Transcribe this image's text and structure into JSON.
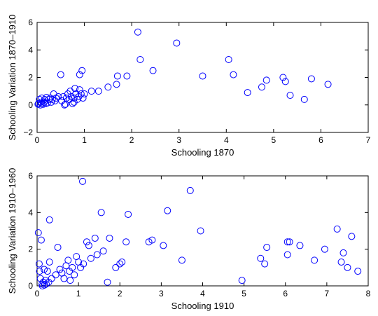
{
  "chart_data": [
    {
      "type": "scatter",
      "title": "",
      "xlabel": "Schooling 1870",
      "ylabel": "Schooling Variation 1870–1910",
      "xlim": [
        0,
        7
      ],
      "ylim": [
        -2,
        6
      ],
      "xticks": [
        "0",
        "1",
        "2",
        "3",
        "4",
        "5",
        "6",
        "7"
      ],
      "yticks": [
        "−2",
        "0",
        "2",
        "4",
        "6"
      ],
      "grid": false,
      "marker": "circle",
      "color": "#0000ff",
      "points": [
        [
          0.02,
          0.05
        ],
        [
          0.03,
          0.1
        ],
        [
          0.05,
          0.4
        ],
        [
          0.07,
          0.0
        ],
        [
          0.08,
          0.2
        ],
        [
          0.1,
          0.1
        ],
        [
          0.1,
          0.5
        ],
        [
          0.13,
          0.05
        ],
        [
          0.15,
          0.2
        ],
        [
          0.16,
          0.4
        ],
        [
          0.18,
          0.1
        ],
        [
          0.2,
          0.55
        ],
        [
          0.22,
          0.15
        ],
        [
          0.25,
          0.4
        ],
        [
          0.28,
          0.5
        ],
        [
          0.3,
          0.2
        ],
        [
          0.32,
          0.4
        ],
        [
          0.35,
          0.8
        ],
        [
          0.38,
          0.3
        ],
        [
          0.4,
          0.5
        ],
        [
          0.45,
          0.6
        ],
        [
          0.5,
          2.2
        ],
        [
          0.52,
          0.3
        ],
        [
          0.55,
          0.6
        ],
        [
          0.58,
          0.0
        ],
        [
          0.6,
          0.05
        ],
        [
          0.62,
          0.5
        ],
        [
          0.65,
          0.8
        ],
        [
          0.68,
          0.4
        ],
        [
          0.7,
          1.0
        ],
        [
          0.72,
          0.6
        ],
        [
          0.75,
          0.1
        ],
        [
          0.78,
          0.2
        ],
        [
          0.78,
          0.5
        ],
        [
          0.8,
          1.2
        ],
        [
          0.82,
          0.8
        ],
        [
          0.85,
          0.4
        ],
        [
          0.88,
          0.6
        ],
        [
          0.9,
          2.2
        ],
        [
          0.9,
          1.1
        ],
        [
          0.93,
          0.8
        ],
        [
          0.95,
          2.5
        ],
        [
          0.97,
          0.5
        ],
        [
          1.0,
          0.8
        ],
        [
          1.15,
          1.0
        ],
        [
          1.3,
          1.0
        ],
        [
          1.5,
          1.3
        ],
        [
          1.68,
          1.5
        ],
        [
          1.7,
          2.1
        ],
        [
          1.9,
          2.1
        ],
        [
          2.13,
          5.3
        ],
        [
          2.18,
          3.3
        ],
        [
          2.45,
          2.5
        ],
        [
          2.95,
          4.5
        ],
        [
          3.5,
          2.1
        ],
        [
          4.05,
          3.3
        ],
        [
          4.15,
          2.2
        ],
        [
          4.45,
          0.9
        ],
        [
          4.75,
          1.3
        ],
        [
          4.85,
          1.8
        ],
        [
          5.2,
          2.0
        ],
        [
          5.25,
          1.7
        ],
        [
          5.35,
          0.7
        ],
        [
          5.65,
          0.4
        ],
        [
          5.8,
          1.9
        ],
        [
          6.15,
          1.5
        ]
      ]
    },
    {
      "type": "scatter",
      "title": "",
      "xlabel": "Schooling 1910",
      "ylabel": "Schooling Variation 1910–1960",
      "xlim": [
        0,
        8
      ],
      "ylim": [
        0,
        6
      ],
      "xticks": [
        "0",
        "1",
        "2",
        "3",
        "4",
        "5",
        "6",
        "7",
        "8"
      ],
      "yticks": [
        "0",
        "2",
        "4",
        "6"
      ],
      "grid": false,
      "marker": "circle",
      "color": "#0000ff",
      "points": [
        [
          0.03,
          2.9
        ],
        [
          0.05,
          1.2
        ],
        [
          0.06,
          0.8
        ],
        [
          0.08,
          0.4
        ],
        [
          0.1,
          2.5
        ],
        [
          0.12,
          0.1
        ],
        [
          0.13,
          0.0
        ],
        [
          0.15,
          0.2
        ],
        [
          0.17,
          0.9
        ],
        [
          0.18,
          0.05
        ],
        [
          0.2,
          0.3
        ],
        [
          0.22,
          0.1
        ],
        [
          0.25,
          0.8
        ],
        [
          0.28,
          0.2
        ],
        [
          0.3,
          1.3
        ],
        [
          0.3,
          3.6
        ],
        [
          0.35,
          0.4
        ],
        [
          0.45,
          0.6
        ],
        [
          0.5,
          2.1
        ],
        [
          0.55,
          0.9
        ],
        [
          0.6,
          0.7
        ],
        [
          0.65,
          0.4
        ],
        [
          0.7,
          1.1
        ],
        [
          0.75,
          1.4
        ],
        [
          0.78,
          0.8
        ],
        [
          0.8,
          0.3
        ],
        [
          0.85,
          1.0
        ],
        [
          0.9,
          0.6
        ],
        [
          0.95,
          1.6
        ],
        [
          1.0,
          1.3
        ],
        [
          1.05,
          1.0
        ],
        [
          1.1,
          5.7
        ],
        [
          1.12,
          1.2
        ],
        [
          1.2,
          2.4
        ],
        [
          1.25,
          2.2
        ],
        [
          1.3,
          1.5
        ],
        [
          1.4,
          2.6
        ],
        [
          1.45,
          1.7
        ],
        [
          1.55,
          4.0
        ],
        [
          1.6,
          1.9
        ],
        [
          1.7,
          0.2
        ],
        [
          1.75,
          2.6
        ],
        [
          1.9,
          1.0
        ],
        [
          2.0,
          1.2
        ],
        [
          2.05,
          1.3
        ],
        [
          2.15,
          2.4
        ],
        [
          2.2,
          3.9
        ],
        [
          2.7,
          2.4
        ],
        [
          2.78,
          2.5
        ],
        [
          3.05,
          2.2
        ],
        [
          3.15,
          4.1
        ],
        [
          3.5,
          1.4
        ],
        [
          3.7,
          5.2
        ],
        [
          3.95,
          3.0
        ],
        [
          4.95,
          0.3
        ],
        [
          5.4,
          1.5
        ],
        [
          5.5,
          1.2
        ],
        [
          5.55,
          2.1
        ],
        [
          6.05,
          1.7
        ],
        [
          6.05,
          2.4
        ],
        [
          6.1,
          2.4
        ],
        [
          6.35,
          2.2
        ],
        [
          6.7,
          1.4
        ],
        [
          6.95,
          2.0
        ],
        [
          7.25,
          3.1
        ],
        [
          7.35,
          1.3
        ],
        [
          7.4,
          1.8
        ],
        [
          7.5,
          1.0
        ],
        [
          7.6,
          2.7
        ],
        [
          7.75,
          0.8
        ]
      ]
    }
  ]
}
